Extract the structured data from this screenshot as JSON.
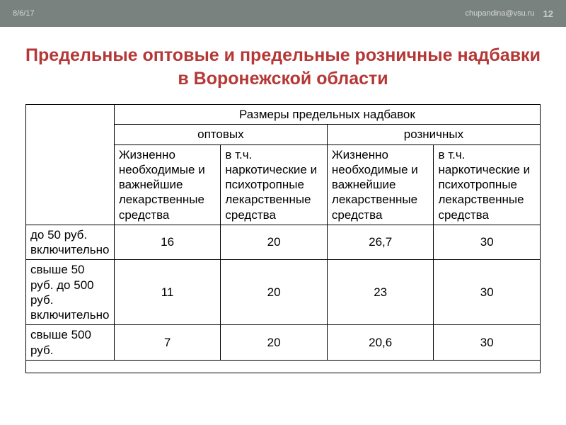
{
  "header": {
    "date": "8/6/17",
    "email": "chupandina@vsu.ru",
    "page": "12"
  },
  "title": "Предельные оптовые и предельные розничные надбавки в Воронежской области",
  "table": {
    "top_header": "Размеры предельных надбавок",
    "group_headers": [
      "оптовых",
      "розничных"
    ],
    "sub_headers": [
      "Жизненно необходимые и важнейшие лекарственные средства",
      "в т.ч. наркотические и психотропные лекарственные средства",
      "Жизненно необходимые и важнейшие лекарственные средства",
      "в т.ч. наркотические и психотропные лекарственные средства"
    ],
    "rows": [
      {
        "label": "до 50 руб. включительно",
        "values": [
          "16",
          "20",
          "26,7",
          "30"
        ]
      },
      {
        "label": "свыше 50 руб. до 500 руб. включительно",
        "values": [
          "11",
          "20",
          "23",
          "30"
        ]
      },
      {
        "label": "свыше 500 руб.",
        "values": [
          "7",
          "20",
          "20,6",
          "30"
        ]
      }
    ]
  },
  "styles": {
    "header_bg": "#7a8280",
    "header_text": "#d4d8d6",
    "title_color": "#b53836",
    "border_color": "#000000",
    "body_font_size": 17,
    "title_font_size": 25
  }
}
